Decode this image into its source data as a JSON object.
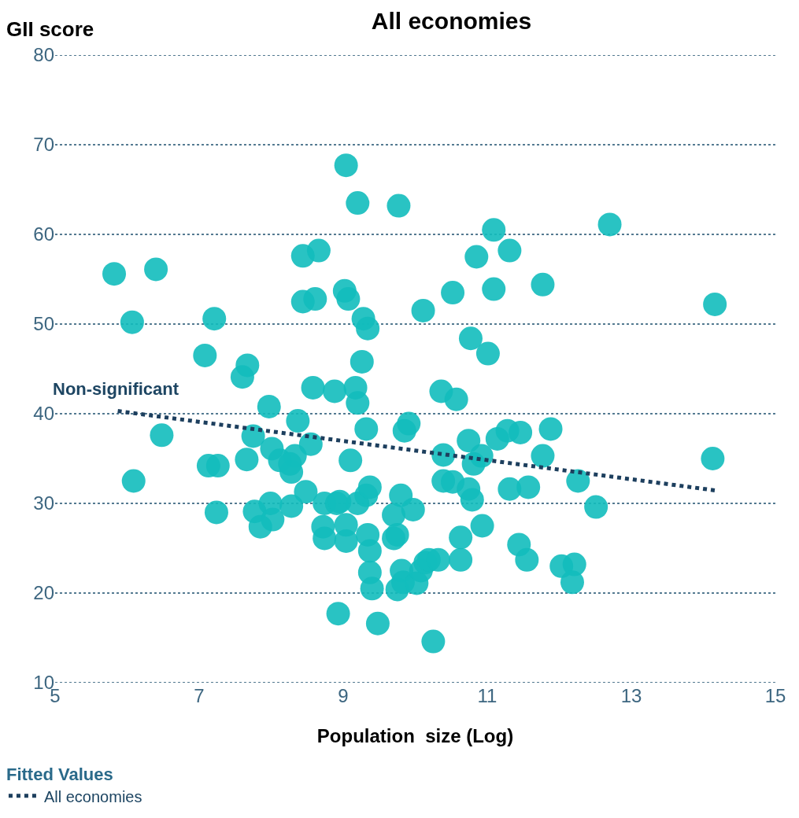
{
  "chart_data": {
    "type": "scatter",
    "title": "All economies",
    "xlabel": "Population  size (Log)",
    "ylabel": "GII score",
    "legend_title": "Fitted Values",
    "marker": "circle",
    "grid": "y",
    "legend": "bottom left",
    "xlim": [
      5,
      15
    ],
    "xticks": [
      5,
      7,
      9,
      11,
      13,
      15
    ],
    "ylim": [
      10,
      80
    ],
    "yticks": [
      10,
      20,
      30,
      40,
      50,
      60,
      70,
      80
    ],
    "annotations": [
      "Non-significant"
    ],
    "series": [
      {
        "color": "#12bcbc",
        "x": [
          5.82,
          6.07,
          6.4,
          6.09,
          6.48,
          7.08,
          7.21,
          7.13,
          7.26,
          7.24,
          7.6,
          7.67,
          7.66,
          7.75,
          7.97,
          7.77,
          7.85,
          7.99,
          8.02,
          8.01,
          8.12,
          8.28,
          8.33,
          8.26,
          8.37,
          8.44,
          8.44,
          8.61,
          8.66,
          8.58,
          8.55,
          8.48,
          8.28,
          8.74,
          8.72,
          8.74,
          8.88,
          8.91,
          8.93,
          9.04,
          9.02,
          9.07,
          8.95,
          9.04,
          9.04,
          9.1,
          9.17,
          9.2,
          9.28,
          9.34,
          9.26,
          9.2,
          9.32,
          9.2,
          9.32,
          9.37,
          9.34,
          9.37,
          9.37,
          9.4,
          9.48,
          9.77,
          9.7,
          9.75,
          9.7,
          9.81,
          9.75,
          9.83,
          9.85,
          9.91,
          9.8,
          9.97,
          10.02,
          10.08,
          10.14,
          10.19,
          10.32,
          10.11,
          10.25,
          10.36,
          10.39,
          10.39,
          10.52,
          10.52,
          10.57,
          10.63,
          10.63,
          10.74,
          10.77,
          10.79,
          10.74,
          10.85,
          10.81,
          10.92,
          10.93,
          11.01,
          11.09,
          11.09,
          11.14,
          11.28,
          11.31,
          11.31,
          11.46,
          11.44,
          11.55,
          11.57,
          11.77,
          11.77,
          11.88,
          12.03,
          12.21,
          12.18,
          12.26,
          12.51,
          12.7,
          14.16,
          14.13
        ],
        "values": [
          55.6,
          50.2,
          56.1,
          32.5,
          37.6,
          46.5,
          50.6,
          34.2,
          34.2,
          29.0,
          44.1,
          45.4,
          34.9,
          37.5,
          40.8,
          29.1,
          27.4,
          30.0,
          28.2,
          36.1,
          34.8,
          33.5,
          35.3,
          34.4,
          39.2,
          57.6,
          52.5,
          52.8,
          58.2,
          42.9,
          36.6,
          31.3,
          29.7,
          30.0,
          27.4,
          26.1,
          42.5,
          30.0,
          17.7,
          67.7,
          53.7,
          52.8,
          30.2,
          27.6,
          25.8,
          34.8,
          42.9,
          41.2,
          50.6,
          49.5,
          45.8,
          63.5,
          38.3,
          30.0,
          30.9,
          31.8,
          26.5,
          24.7,
          22.3,
          20.5,
          16.6,
          63.2,
          28.7,
          26.5,
          26.1,
          22.5,
          20.4,
          21.2,
          38.1,
          38.9,
          30.9,
          29.3,
          21.1,
          22.5,
          23.4,
          23.7,
          23.7,
          51.5,
          14.6,
          42.5,
          35.4,
          32.5,
          53.5,
          32.4,
          41.6,
          23.7,
          26.2,
          31.6,
          48.4,
          30.4,
          37.0,
          57.5,
          34.4,
          35.3,
          27.5,
          46.7,
          53.9,
          60.5,
          37.2,
          38.1,
          58.2,
          31.6,
          37.9,
          25.4,
          23.7,
          31.8,
          35.3,
          54.4,
          38.3,
          23.0,
          23.2,
          21.2,
          32.5,
          29.6,
          61.1,
          52.2,
          35.0
        ]
      },
      {
        "name": "All economies",
        "type": "line",
        "line_style": "dotted",
        "marker": "none",
        "color": "#1d3f5e",
        "x": [
          5.87,
          14.21
        ],
        "values": [
          40.3,
          31.4
        ]
      }
    ]
  }
}
